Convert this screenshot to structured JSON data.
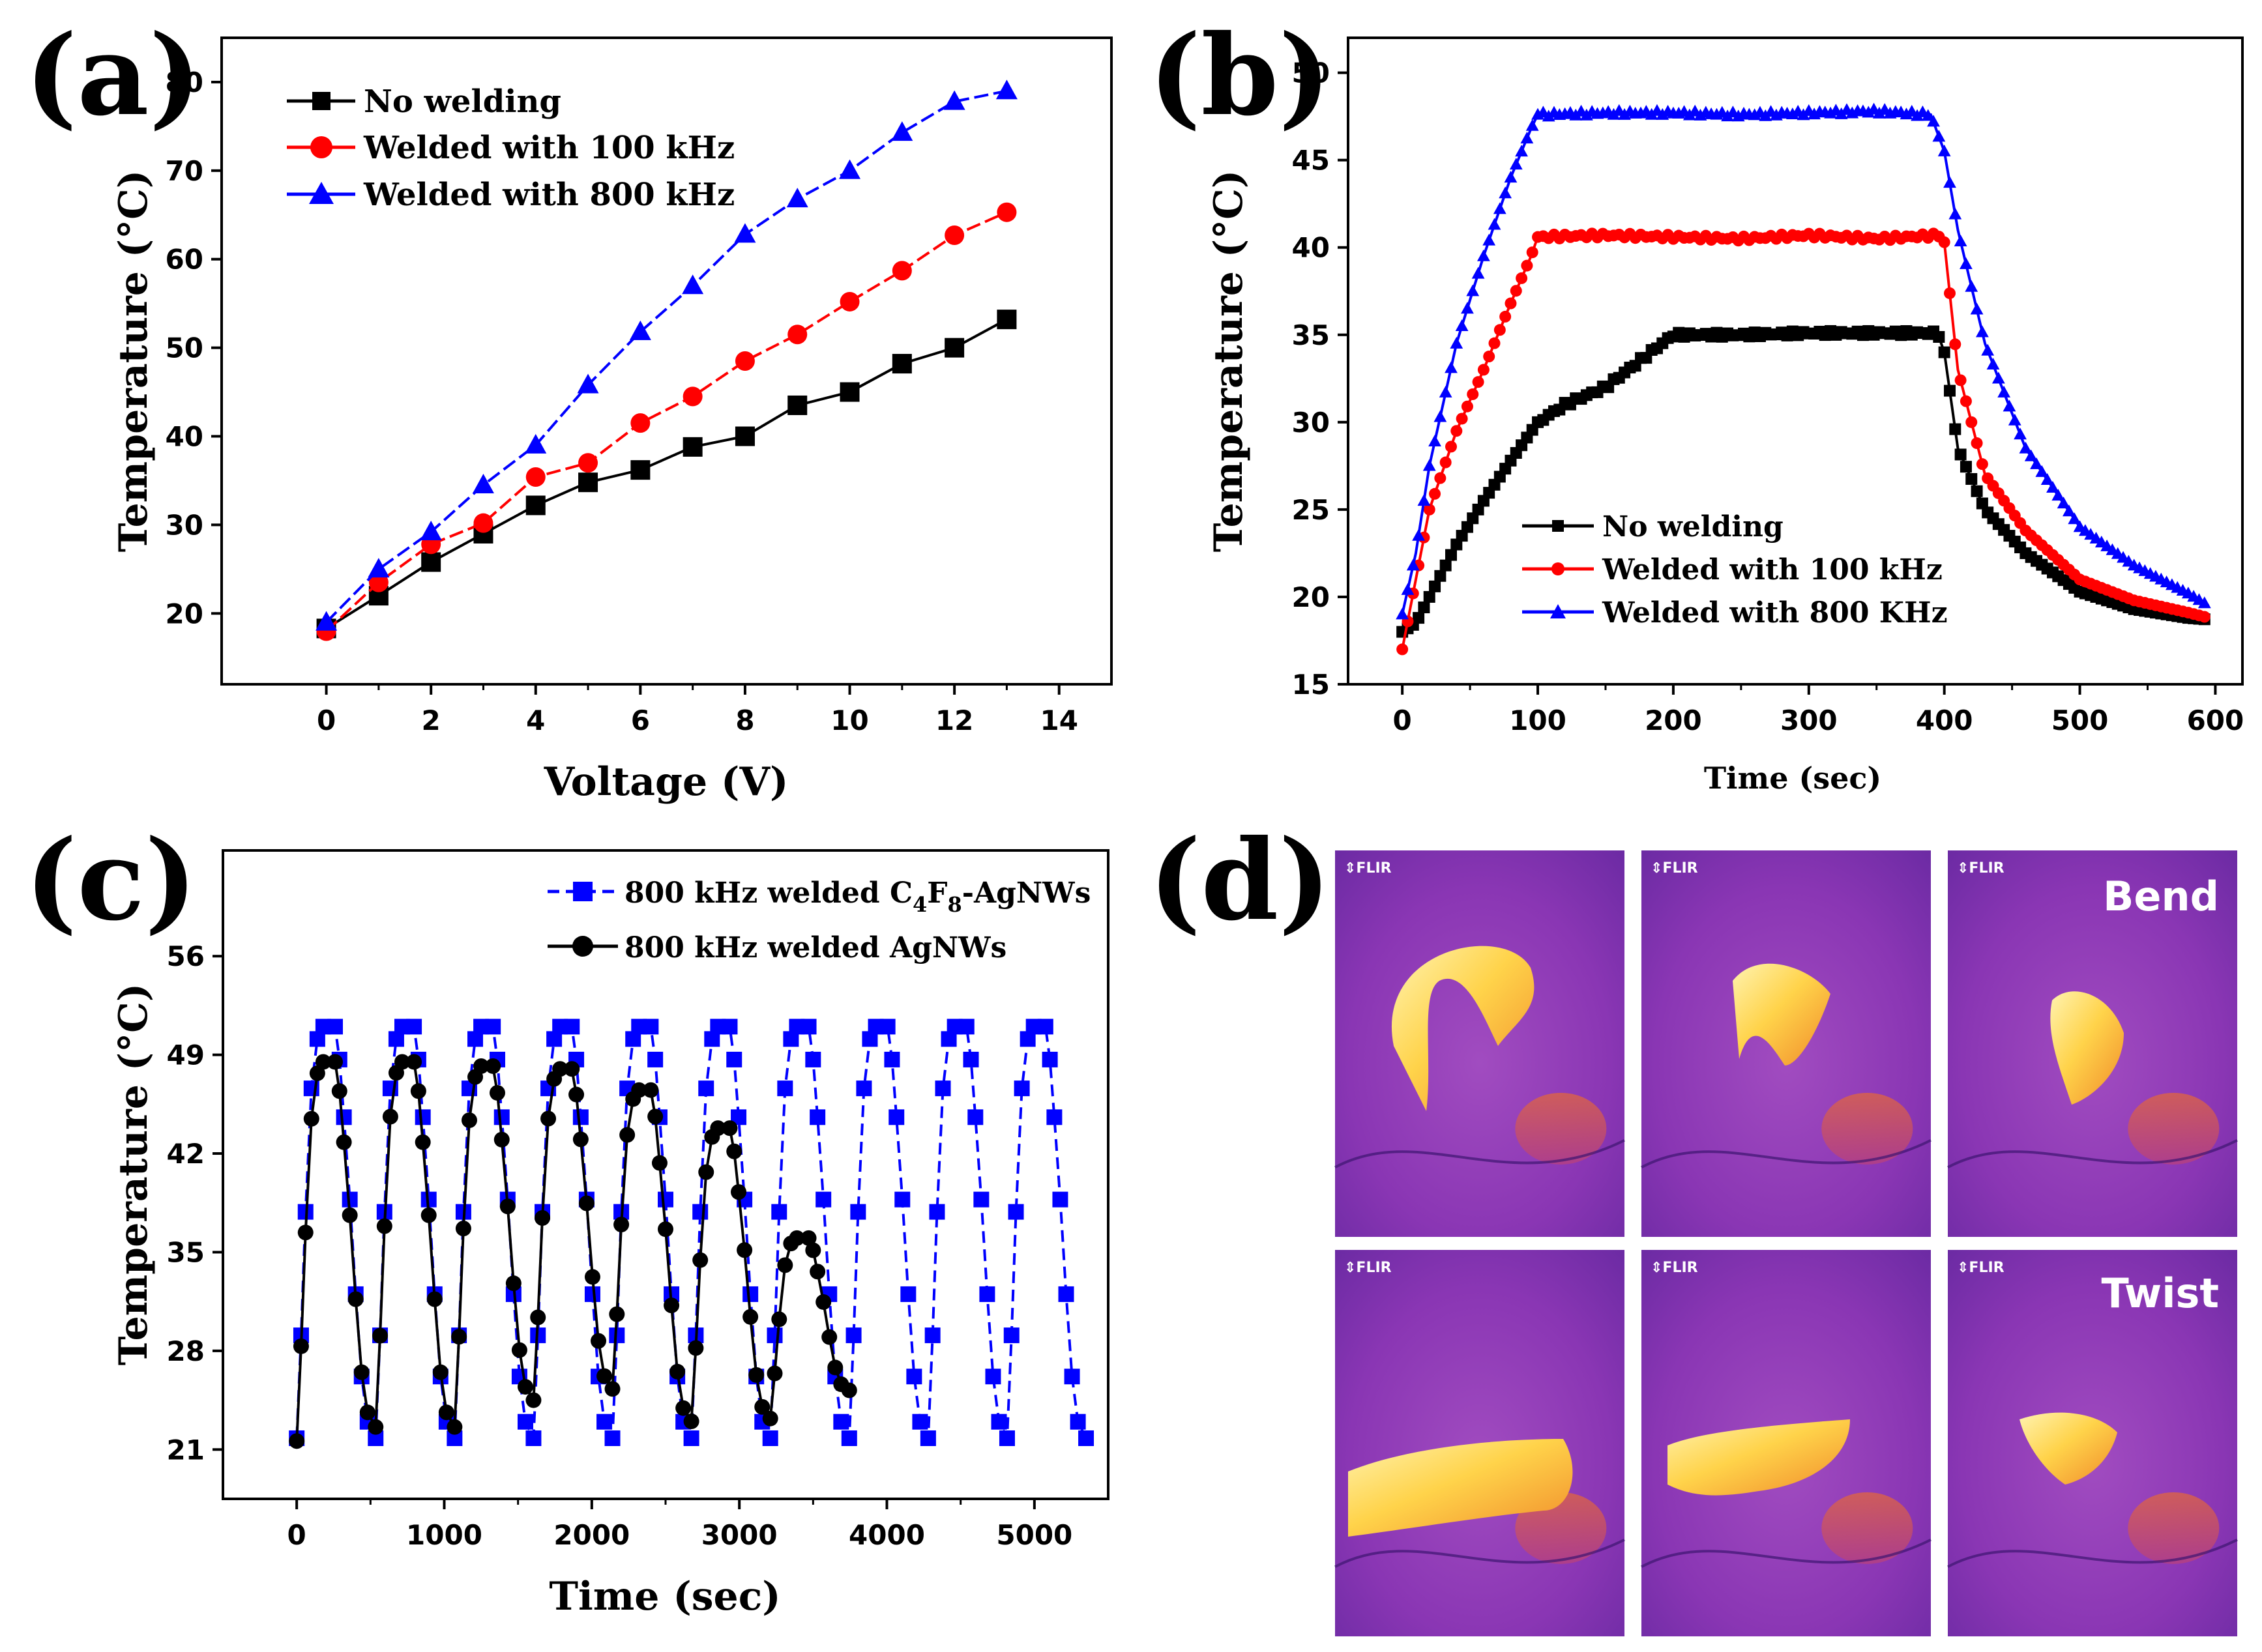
{
  "panels": {
    "a": {
      "letter": "(a)"
    },
    "b": {
      "letter": "(b)"
    },
    "c": {
      "letter": "(c)"
    },
    "d": {
      "letter": "(d)"
    }
  },
  "chart_data": [
    {
      "id": "a",
      "type": "line",
      "xlabel": "Voltage (V)",
      "ylabel": "Temperature (°C)",
      "xlim": [
        -2,
        15
      ],
      "ylim": [
        12,
        85
      ],
      "xticks": [
        0,
        2,
        4,
        6,
        8,
        10,
        12,
        14
      ],
      "yticks": [
        20,
        30,
        40,
        50,
        60,
        70,
        80
      ],
      "series": [
        {
          "name": "No welding",
          "color": "#000000",
          "marker": "square",
          "x": [
            0,
            1,
            2,
            3,
            4,
            5,
            6,
            7,
            8,
            9,
            10,
            11,
            12,
            13
          ],
          "y": [
            18.3,
            22.0,
            25.8,
            29.0,
            32.2,
            34.8,
            36.2,
            38.8,
            40.0,
            43.5,
            45.0,
            48.2,
            50.0,
            53.2
          ]
        },
        {
          "name": "Welded with 100 kHz",
          "color": "#ff0000",
          "marker": "circle",
          "x": [
            0,
            1,
            2,
            3,
            4,
            5,
            6,
            7,
            8,
            9,
            10,
            11,
            12,
            13
          ],
          "y": [
            18.0,
            23.5,
            27.8,
            30.2,
            35.4,
            37.0,
            41.5,
            44.5,
            48.5,
            51.5,
            55.2,
            58.7,
            62.7,
            65.3
          ]
        },
        {
          "name": "Welded with 800 kHz",
          "color": "#0000ff",
          "marker": "triangle",
          "x": [
            0,
            1,
            2,
            3,
            4,
            5,
            6,
            7,
            8,
            9,
            10,
            11,
            12,
            13
          ],
          "y": [
            19.0,
            25.0,
            29.2,
            34.5,
            39.0,
            45.8,
            51.8,
            57.0,
            62.8,
            66.8,
            70.0,
            74.3,
            77.8,
            79.0
          ]
        }
      ]
    },
    {
      "id": "b",
      "type": "line",
      "xlabel": "Time (sec)",
      "ylabel": "Temperature (°C)",
      "xlim": [
        -40,
        620
      ],
      "ylim": [
        15,
        52
      ],
      "xticks": [
        0,
        100,
        200,
        300,
        400,
        500,
        600
      ],
      "yticks": [
        15,
        20,
        25,
        30,
        35,
        40,
        45,
        50
      ],
      "series": [
        {
          "name": "No welding",
          "color": "#000000",
          "marker": "square",
          "x": [
            0,
            10,
            20,
            40,
            60,
            80,
            100,
            120,
            150,
            180,
            200,
            250,
            300,
            350,
            395,
            400,
            410,
            430,
            460,
            500,
            540,
            580,
            595
          ],
          "y": [
            18.0,
            18.5,
            20.0,
            23.0,
            25.5,
            27.8,
            30.0,
            31.0,
            32.0,
            33.8,
            35.0,
            35.0,
            35.1,
            35.1,
            35.1,
            34.0,
            28.5,
            25.0,
            22.5,
            20.3,
            19.3,
            18.8,
            18.7
          ]
        },
        {
          "name": "Welded with 100 kHz",
          "color": "#ff0000",
          "marker": "circle",
          "x": [
            0,
            10,
            20,
            40,
            60,
            80,
            95,
            100,
            150,
            200,
            250,
            300,
            350,
            395,
            400,
            410,
            430,
            460,
            500,
            540,
            580,
            595
          ],
          "y": [
            17.0,
            21.0,
            25.0,
            29.5,
            33.0,
            36.8,
            39.5,
            40.6,
            40.7,
            40.6,
            40.5,
            40.7,
            40.5,
            40.7,
            40.3,
            33.0,
            27.0,
            23.8,
            21.0,
            19.8,
            19.1,
            18.8
          ]
        },
        {
          "name": "Welded with 800 KHz",
          "color": "#0000ff",
          "marker": "triangle",
          "x": [
            0,
            10,
            20,
            40,
            60,
            80,
            95,
            100,
            150,
            200,
            250,
            300,
            350,
            390,
            400,
            410,
            430,
            460,
            500,
            540,
            580,
            595
          ],
          "y": [
            19.0,
            22.5,
            27.5,
            34.5,
            39.5,
            44.0,
            46.8,
            47.6,
            47.7,
            47.7,
            47.6,
            47.7,
            47.8,
            47.6,
            45.5,
            41.0,
            34.5,
            28.5,
            24.0,
            21.8,
            20.2,
            19.5
          ]
        }
      ]
    },
    {
      "id": "c",
      "type": "line",
      "xlabel": "Time (sec)",
      "ylabel": "Temperature (°C)",
      "xlim": [
        -500,
        5500
      ],
      "ylim": [
        17.5,
        63.5
      ],
      "xticks": [
        0,
        1000,
        2000,
        3000,
        4000,
        5000
      ],
      "yticks": [
        21,
        28,
        35,
        42,
        49,
        56
      ],
      "series": [
        {
          "name": "800 kHz welded C4F8-AgNWs",
          "color": "#0000ff",
          "marker": "square",
          "dashed": true,
          "cycle": 535,
          "cycles": 10,
          "tmin": 21.8,
          "tmax": [
            51.0,
            51.0,
            51.0,
            51.0,
            51.0,
            51.0,
            51.0,
            51.0,
            51.0,
            51.0
          ]
        },
        {
          "name": "800 kHz welded AgNWs",
          "color": "#000000",
          "marker": "circle",
          "dashed": false,
          "cycle": 535,
          "cycles": 7,
          "tmin": 21.6,
          "tmax": [
            48.5,
            48.5,
            48.2,
            48.0,
            46.5,
            43.8,
            36.0
          ],
          "tlow": [
            22.6,
            22.6,
            24.5,
            25.3,
            23.0,
            23.2,
            25.2
          ]
        }
      ],
      "legend": {
        "c4f8": {
          "prefix": "800 kHz welded C",
          "sub1": "4",
          "mid": "F",
          "sub2": "8",
          "suffix": "-AgNWs"
        },
        "agnw": "800 kHz welded AgNWs"
      }
    }
  ],
  "thermal": {
    "flir_label": "FLIR",
    "bend_label": "Bend",
    "twist_label": "Twist"
  }
}
